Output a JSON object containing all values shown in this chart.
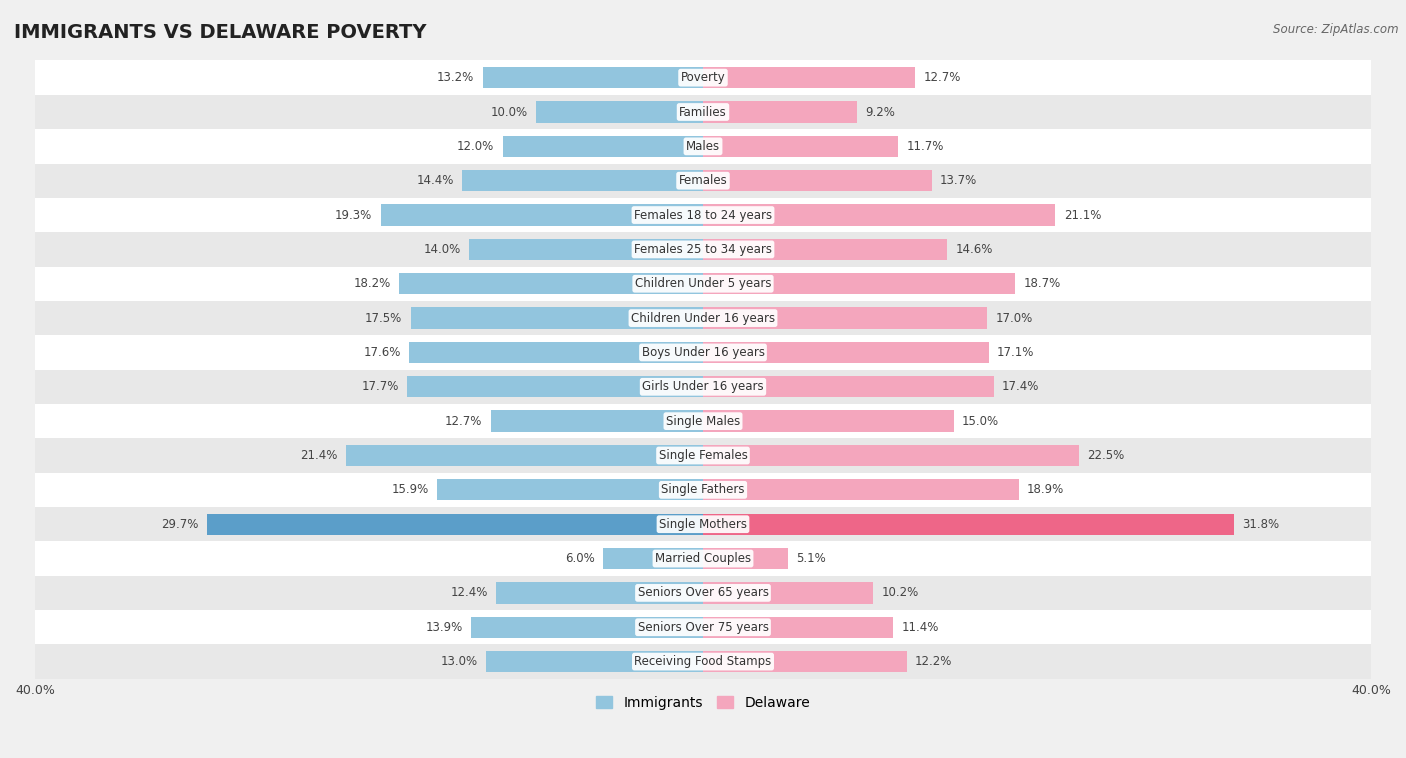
{
  "title": "IMMIGRANTS VS DELAWARE POVERTY",
  "source": "Source: ZipAtlas.com",
  "categories": [
    "Poverty",
    "Families",
    "Males",
    "Females",
    "Females 18 to 24 years",
    "Females 25 to 34 years",
    "Children Under 5 years",
    "Children Under 16 years",
    "Boys Under 16 years",
    "Girls Under 16 years",
    "Single Males",
    "Single Females",
    "Single Fathers",
    "Single Mothers",
    "Married Couples",
    "Seniors Over 65 years",
    "Seniors Over 75 years",
    "Receiving Food Stamps"
  ],
  "immigrants": [
    13.2,
    10.0,
    12.0,
    14.4,
    19.3,
    14.0,
    18.2,
    17.5,
    17.6,
    17.7,
    12.7,
    21.4,
    15.9,
    29.7,
    6.0,
    12.4,
    13.9,
    13.0
  ],
  "delaware": [
    12.7,
    9.2,
    11.7,
    13.7,
    21.1,
    14.6,
    18.7,
    17.0,
    17.1,
    17.4,
    15.0,
    22.5,
    18.9,
    31.8,
    5.1,
    10.2,
    11.4,
    12.2
  ],
  "immigrant_color": "#92C5DE",
  "delaware_color": "#F4A6BD",
  "highlight_immigrant_color": "#5B9EC9",
  "highlight_delaware_color": "#EE6688",
  "background_color": "#f0f0f0",
  "row_color_light": "#ffffff",
  "row_color_dark": "#e8e8e8",
  "axis_max": 40.0,
  "bar_height": 0.62,
  "title_fontsize": 14,
  "label_fontsize": 8.5,
  "value_fontsize": 8.5,
  "legend_fontsize": 10
}
